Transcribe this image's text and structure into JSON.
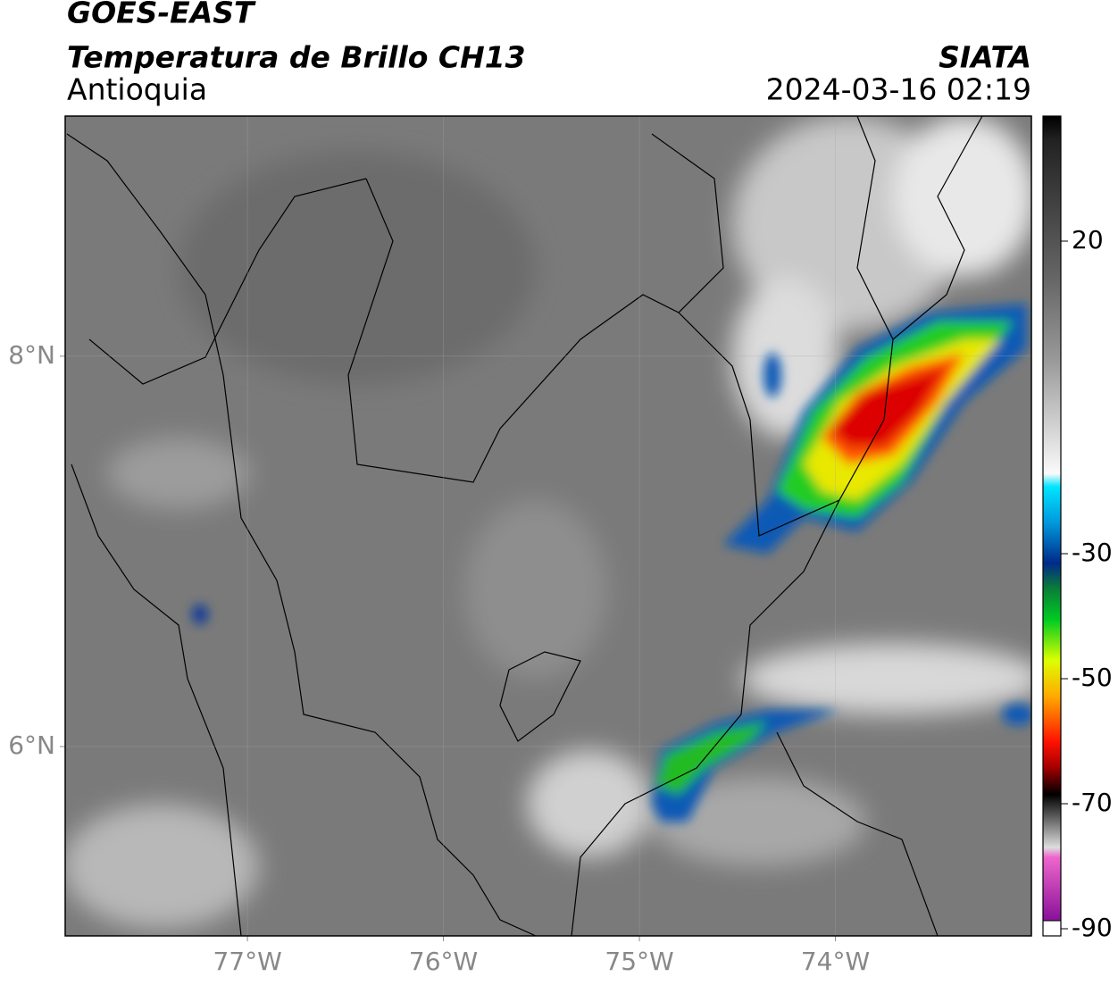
{
  "header": {
    "title": "GOES-EAST",
    "subtitle": "Temperatura de Brillo CH13",
    "region": "Antioquia",
    "source": "SIATA",
    "datetime": "2024-03-16 02:19"
  },
  "map": {
    "xlim": [
      -77.93,
      -73.0
    ],
    "ylim": [
      5.03,
      9.23
    ],
    "xticks": [
      {
        "value": -77,
        "label": "77°W"
      },
      {
        "value": -76,
        "label": "76°W"
      },
      {
        "value": -75,
        "label": "75°W"
      },
      {
        "value": -74,
        "label": "74°W"
      }
    ],
    "yticks": [
      {
        "value": 8,
        "label": "8°N"
      },
      {
        "value": 6,
        "label": "6°N"
      }
    ]
  },
  "colorbar": {
    "lim": [
      -90,
      40
    ],
    "ticks": [
      20,
      -30,
      -50,
      -70,
      -90
    ]
  }
}
